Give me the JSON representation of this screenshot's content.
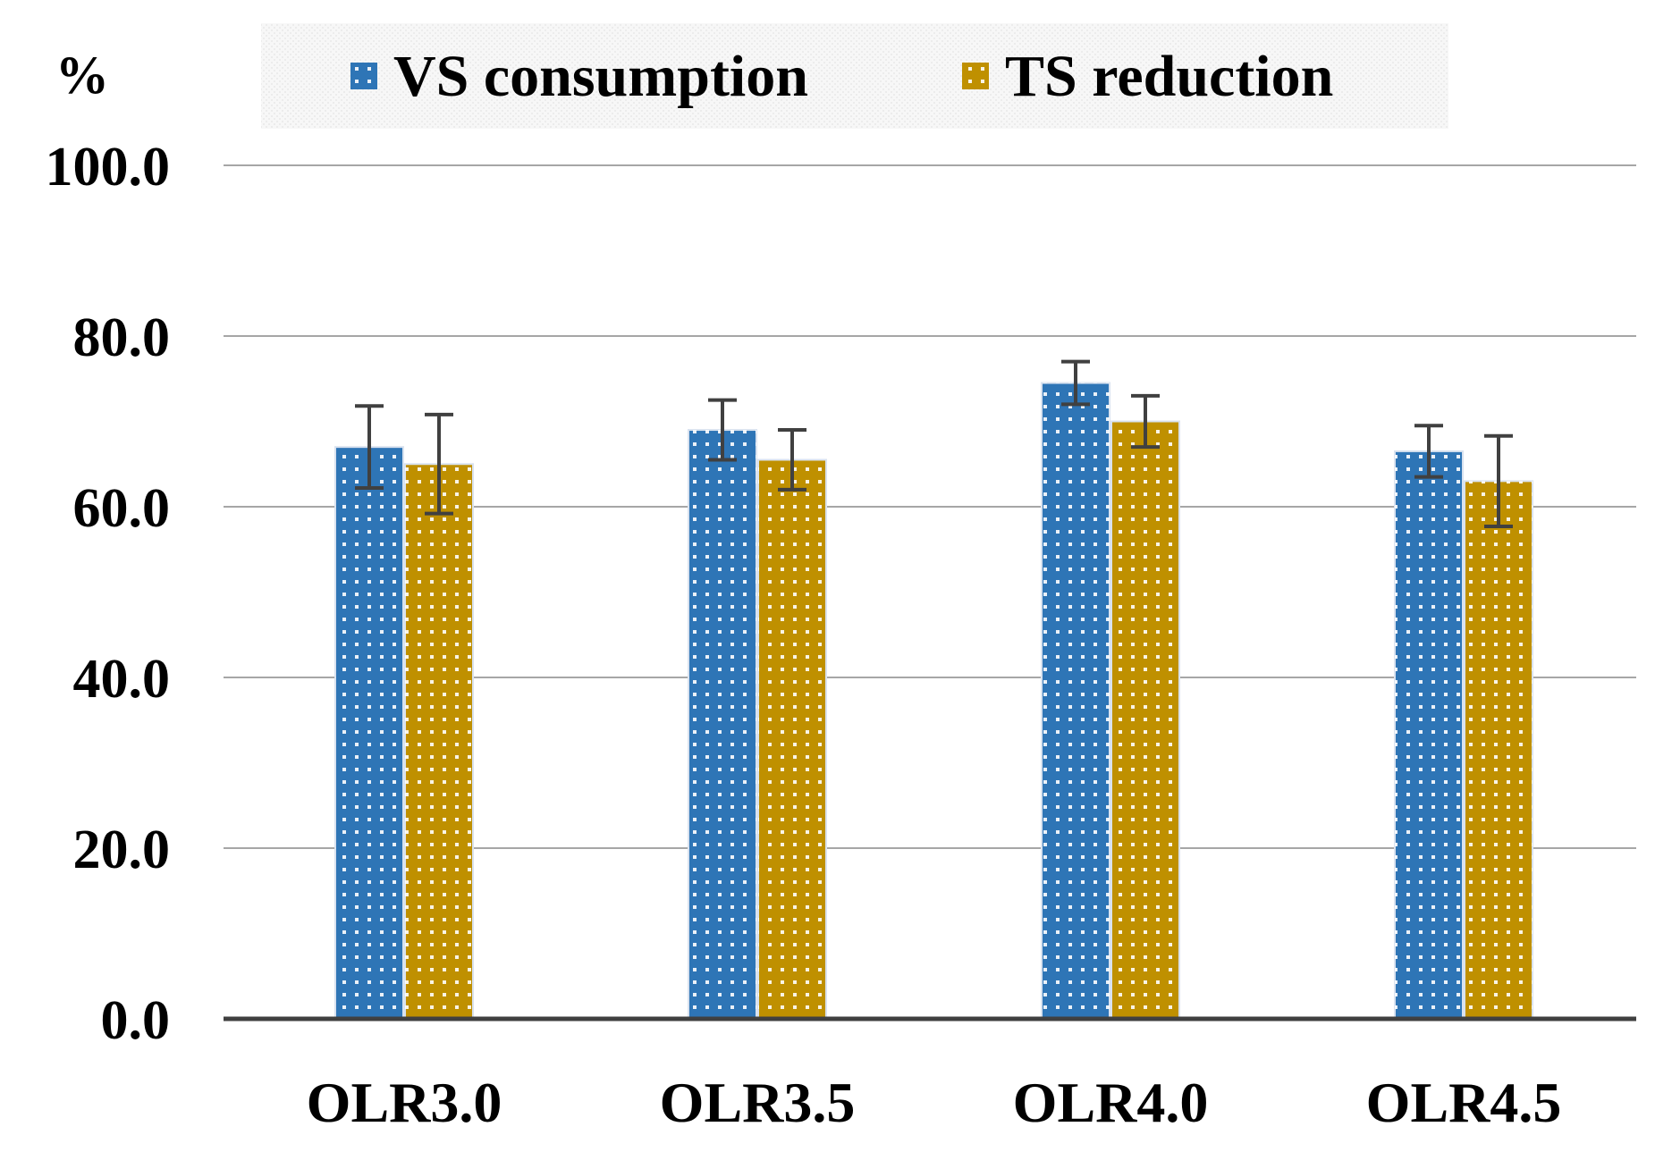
{
  "chart_data": {
    "type": "bar",
    "title": "",
    "xlabel": "",
    "ylabel": "%",
    "ylim": [
      0,
      100
    ],
    "yticks": [
      0,
      20,
      40,
      60,
      80,
      100
    ],
    "ytick_labels": [
      "0.0",
      "20.0",
      "40.0",
      "60.0",
      "80.0",
      "100.0"
    ],
    "grid": true,
    "legend_position": "top",
    "categories": [
      "OLR3.0",
      "OLR3.5",
      "OLR4.0",
      "OLR4.5"
    ],
    "series": [
      {
        "name": "VS consumption",
        "color": "#2E75B6",
        "values": [
          67.0,
          69.0,
          74.5,
          66.5
        ],
        "errors": [
          4.8,
          3.5,
          2.5,
          3.0
        ]
      },
      {
        "name": "TS reduction",
        "color": "#BF9000",
        "values": [
          65.0,
          65.5,
          70.0,
          63.0
        ],
        "errors": [
          5.8,
          3.5,
          3.0,
          5.3
        ]
      }
    ]
  }
}
